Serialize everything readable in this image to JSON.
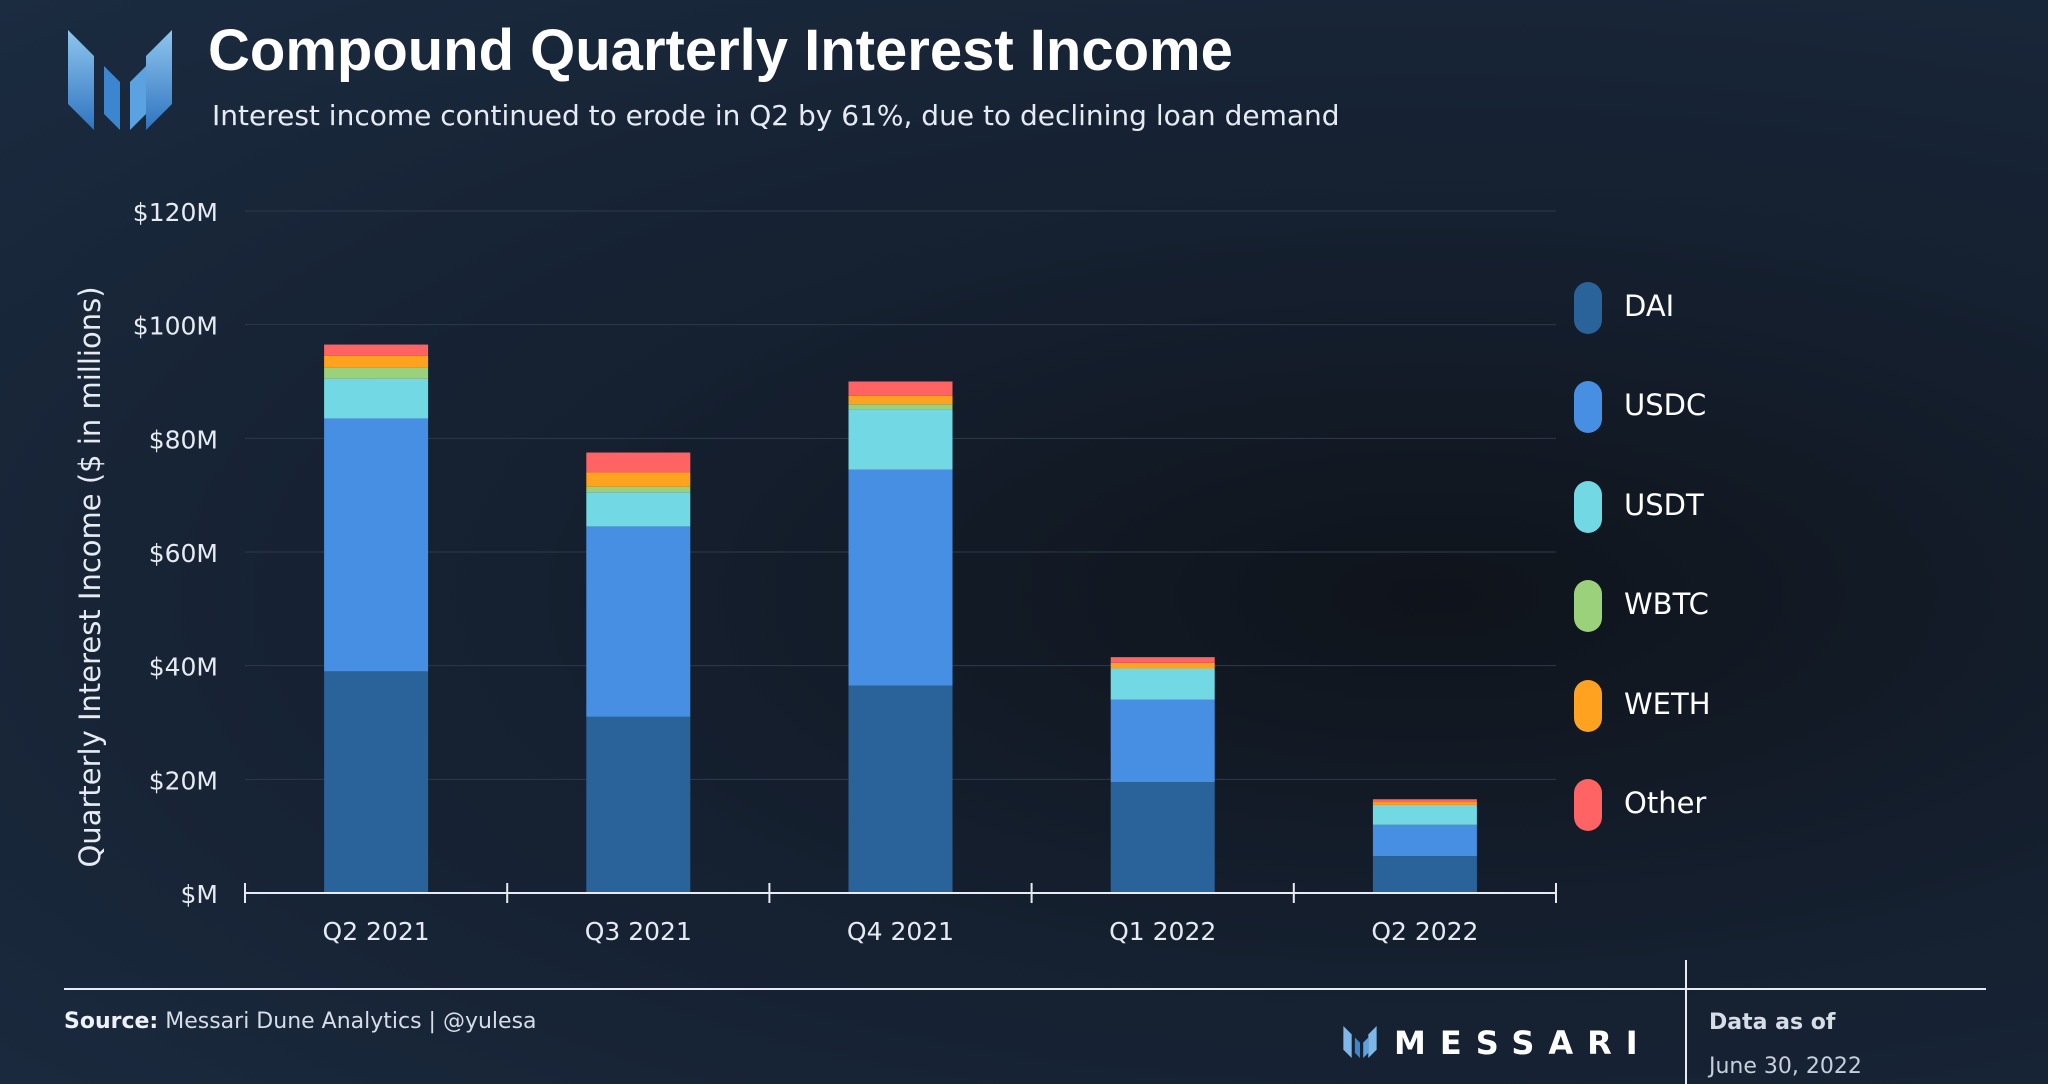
{
  "header": {
    "title": "Compound Quarterly Interest Income",
    "subtitle": "Interest income continued to erode in Q2 by 61%, due to declining loan demand"
  },
  "chart_data": {
    "type": "bar",
    "stacked": true,
    "categories": [
      "Q2 2021",
      "Q3 2021",
      "Q4 2021",
      "Q1 2022",
      "Q2 2022"
    ],
    "series": [
      {
        "name": "DAI",
        "color": "#2a6399",
        "values": [
          39,
          31,
          36.5,
          19.5,
          6.5
        ]
      },
      {
        "name": "USDC",
        "color": "#468fe3",
        "values": [
          44.5,
          33.5,
          38,
          14.5,
          5.5
        ]
      },
      {
        "name": "USDT",
        "color": "#72d8e3",
        "values": [
          7,
          6,
          10.5,
          5.5,
          3.5
        ]
      },
      {
        "name": "WBTC",
        "color": "#9bd17a",
        "values": [
          2,
          1,
          1,
          0,
          0
        ]
      },
      {
        "name": "WETH",
        "color": "#ffa21f",
        "values": [
          2,
          2.5,
          1.5,
          1,
          0.5
        ]
      },
      {
        "name": "Other",
        "color": "#ff6364",
        "values": [
          2,
          3.5,
          2.5,
          1,
          0.5
        ]
      }
    ],
    "ylabel": "Quarterly Interest Income ($ in millions)",
    "ylim": [
      0,
      120
    ],
    "yticks": [
      0,
      20,
      40,
      60,
      80,
      100,
      120
    ],
    "ytick_labels": [
      "$M",
      "$20M",
      "$40M",
      "$60M",
      "$80M",
      "$100M",
      "$120M"
    ],
    "grid": true,
    "legend_position": "right"
  },
  "footer": {
    "source_label": "Source:",
    "source_text": "Messari Dune Analytics | @yulesa",
    "brand": "MESSARI",
    "asof_label": "Data as of",
    "asof_date": "June 30, 2022"
  }
}
